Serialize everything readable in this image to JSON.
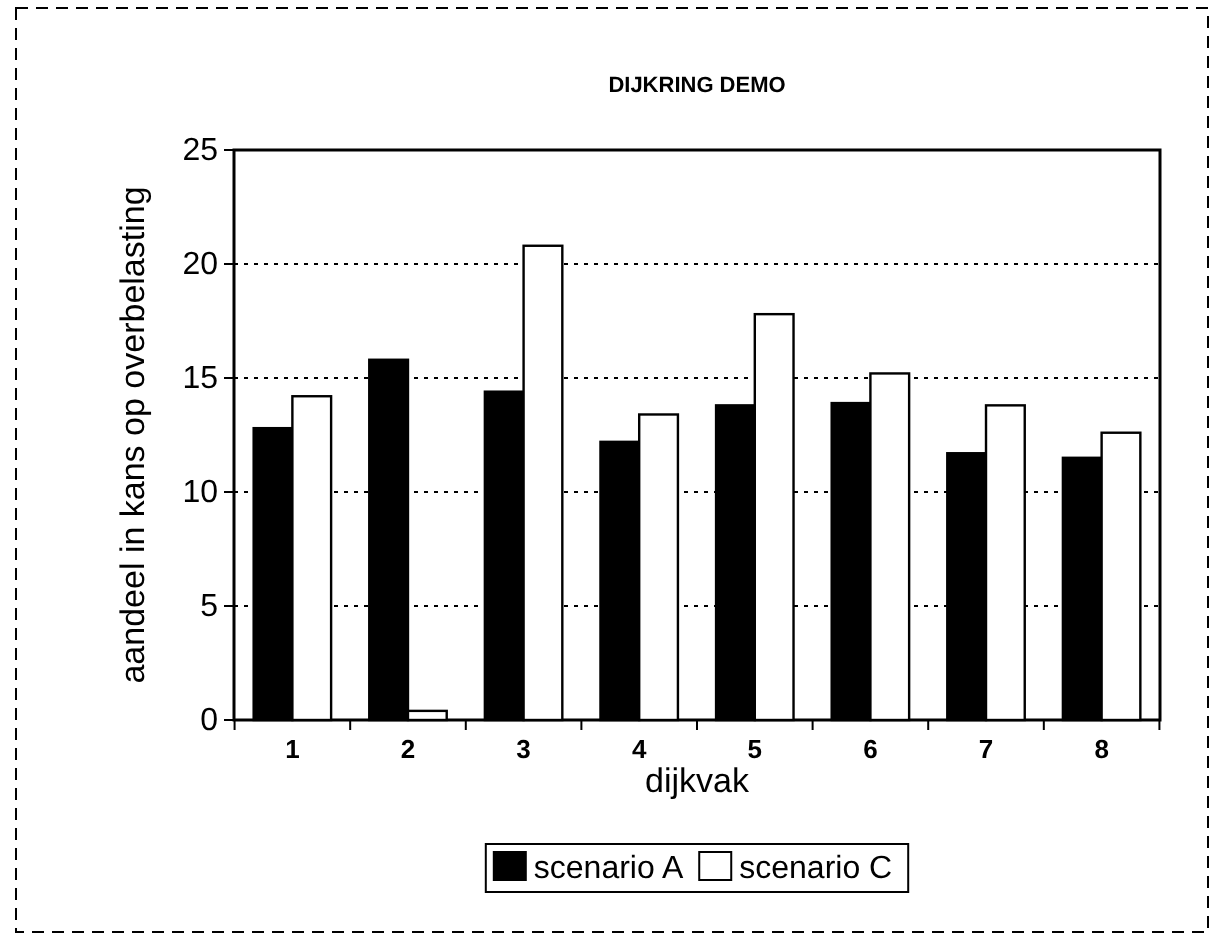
{
  "chart_data": {
    "type": "bar",
    "title": "DIJKRING DEMO",
    "xlabel": "dijkvak",
    "ylabel": "aandeel in kans op overbelasting",
    "categories": [
      "1",
      "2",
      "3",
      "4",
      "5",
      "6",
      "7",
      "8"
    ],
    "series": [
      {
        "name": "scenario A",
        "color": "#000000",
        "values": [
          12.8,
          15.8,
          14.4,
          12.2,
          13.8,
          13.9,
          11.7,
          11.5
        ]
      },
      {
        "name": "scenario C",
        "color": "#ffffff",
        "values": [
          14.2,
          0.4,
          20.8,
          13.4,
          17.8,
          15.2,
          13.8,
          12.6
        ]
      }
    ],
    "ylim": [
      0,
      25
    ],
    "yticks": [
      0,
      5,
      10,
      15,
      20,
      25
    ],
    "grid": "y",
    "legend": "bottom"
  }
}
